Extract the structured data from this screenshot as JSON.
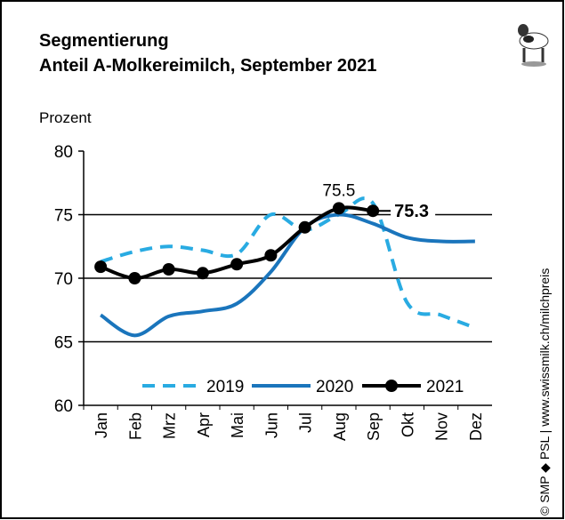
{
  "chart_data": {
    "type": "line",
    "title": "Segmentierung",
    "subtitle": "Anteil A-Molkereimilch, September 2021",
    "y_label": "Prozent",
    "source": "© SMP ◆ PSL | www.swissmilk.ch/milchpreis",
    "categories": [
      "Jan",
      "Feb",
      "Mrz",
      "Apr",
      "Mai",
      "Jun",
      "Jul",
      "Aug",
      "Sep",
      "Okt",
      "Nov",
      "Dez"
    ],
    "series": [
      {
        "name": "2019",
        "color": "#29abe2",
        "dashed": true,
        "markers": false,
        "values": [
          71.3,
          72.1,
          72.5,
          72.2,
          71.9,
          75.0,
          73.8,
          75.0,
          75.9,
          68.1,
          67.1,
          66.1
        ]
      },
      {
        "name": "2020",
        "color": "#1a75bc",
        "dashed": false,
        "markers": false,
        "values": [
          67.1,
          65.5,
          67.0,
          67.4,
          68.0,
          70.5,
          74.0,
          75.0,
          74.3,
          73.2,
          72.9,
          72.9
        ]
      },
      {
        "name": "2021",
        "color": "#000000",
        "dashed": false,
        "markers": true,
        "values": [
          70.9,
          70.0,
          70.7,
          70.4,
          71.1,
          71.8,
          74.0,
          75.5,
          75.3,
          null,
          null,
          null
        ],
        "value_labels": [
          null,
          null,
          null,
          null,
          null,
          null,
          null,
          "75.5",
          "75.3",
          null,
          null,
          null
        ]
      }
    ],
    "ylim": [
      60,
      80
    ],
    "yticks": [
      60,
      65,
      70,
      75,
      80
    ],
    "grid": true,
    "legend": "bottom"
  }
}
